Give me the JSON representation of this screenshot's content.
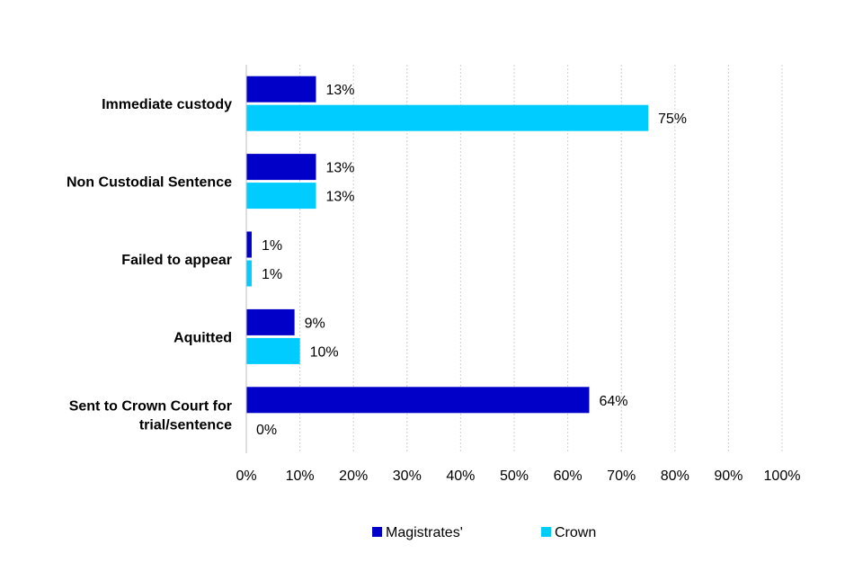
{
  "chart_data": {
    "type": "bar",
    "orientation": "horizontal",
    "categories": [
      [
        "Immediate custody"
      ],
      [
        "Non Custodial Sentence"
      ],
      [
        "Failed to appear"
      ],
      [
        "Aquitted"
      ],
      [
        "Sent to Crown Court for",
        "trial/sentence"
      ]
    ],
    "series": [
      {
        "name": "Magistrates'",
        "color": "#0000C8",
        "values": [
          13,
          13,
          1,
          9,
          64
        ],
        "labels": [
          "13%",
          "13%",
          "1%",
          "9%",
          "64%"
        ]
      },
      {
        "name": "Crown",
        "color": "#00CCFF",
        "values": [
          75,
          13,
          1,
          10,
          0
        ],
        "labels": [
          "75%",
          "13%",
          "1%",
          "10%",
          "0%"
        ]
      }
    ],
    "xlim": [
      0,
      100
    ],
    "xticks": [
      0,
      10,
      20,
      30,
      40,
      50,
      60,
      70,
      80,
      90,
      100
    ],
    "xtick_labels": [
      "0%",
      "10%",
      "20%",
      "30%",
      "40%",
      "50%",
      "60%",
      "70%",
      "80%",
      "90%",
      "100%"
    ],
    "grid": "vertical dashed",
    "legend_position": "bottom"
  }
}
